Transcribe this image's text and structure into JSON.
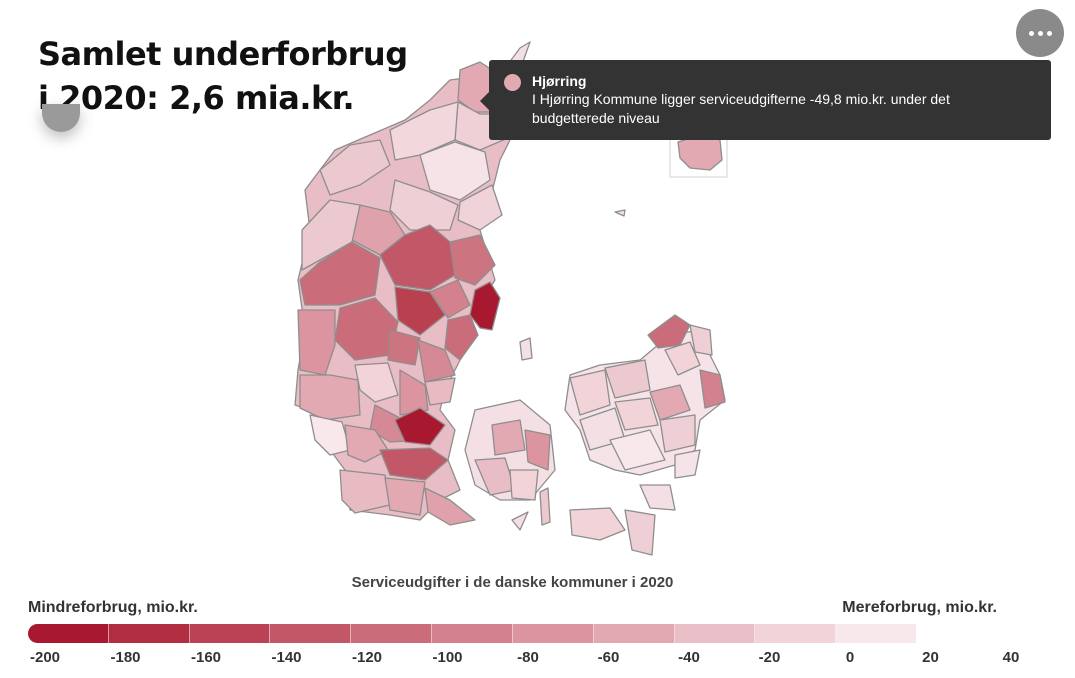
{
  "headline": {
    "line1": "Samlet underforbrug",
    "line2": "i 2020: 2,6 mia.kr."
  },
  "menu": {
    "icon": "more-horizontal-icon"
  },
  "tooltip": {
    "title": "Hjørring",
    "body": "I Hjørring Kommune ligger serviceudgifterne -49,8 mio.kr. under det budgetterede niveau",
    "swatch_color": "#e3a9b3"
  },
  "map": {
    "caption": "Serviceudgifter i de danske kommuner i 2020",
    "border_color": "#8e8e8e"
  },
  "legend": {
    "left_label": "Mindreforbrug, mio.kr.",
    "right_label": "Mereforbrug, mio.kr.",
    "ticks": [
      "-200",
      "-180",
      "-160",
      "-140",
      "-120",
      "-100",
      "-80",
      "-60",
      "-40",
      "-20",
      "0",
      "20",
      "40"
    ],
    "colors": [
      "#a8192f",
      "#b12e41",
      "#ba4254",
      "#c25767",
      "#cb6c7a",
      "#d3818d",
      "#dc95a0",
      "#e3a9b3",
      "#eabec6",
      "#f1d3d8",
      "#f8e8eb"
    ]
  }
}
